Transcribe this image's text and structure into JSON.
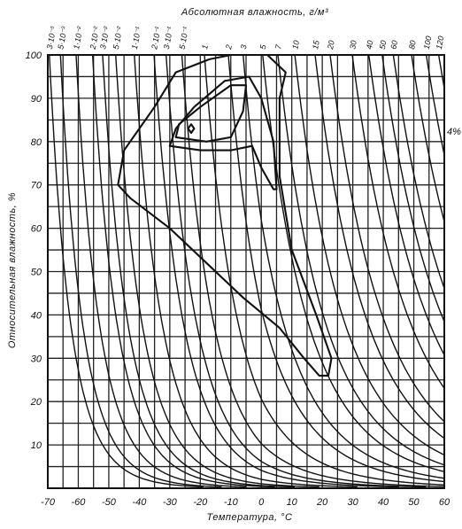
{
  "chart_data": {
    "type": "diagram",
    "xlabel": "Температура, °С",
    "ylabel": "Относительная влажность, %",
    "top_label": "Абсолютная влажность, г/м³",
    "xlim": [
      -70,
      60
    ],
    "ylim": [
      0,
      100
    ],
    "x_ticks": [
      "-70",
      "-60",
      "-50",
      "-40",
      "-30",
      "-20",
      "-10",
      "0",
      "10",
      "20",
      "30",
      "40",
      "50",
      "60"
    ],
    "y_ticks": [
      "10",
      "20",
      "30",
      "40",
      "50",
      "60",
      "70",
      "80",
      "90",
      "100"
    ],
    "absolute_humidity_labels": [
      "3·10⁻³",
      "5·10⁻³",
      "1·10⁻²",
      "2·10⁻²",
      "3·10⁻²",
      "5·10⁻²",
      "1·10⁻¹",
      "2·10⁻¹",
      "3·10⁻¹",
      "5·10⁻¹",
      "1",
      "2",
      "3",
      "5",
      "7",
      "10",
      "15",
      "20",
      "30",
      "40",
      "50",
      "60",
      "80",
      "100",
      "120"
    ],
    "side_note": "4%",
    "absolute_humidity_g_m3": [
      0.003,
      0.005,
      0.01,
      0.02,
      0.03,
      0.05,
      0.1,
      0.2,
      0.3,
      0.5,
      1,
      2,
      3,
      5,
      7,
      10,
      15,
      20,
      30,
      40,
      50,
      60,
      80,
      100,
      120
    ],
    "contours": [
      {
        "points": [
          [
            -17,
            99
          ],
          [
            -28,
            96
          ],
          [
            -35,
            88
          ],
          [
            -45,
            78
          ],
          [
            -47,
            70
          ],
          [
            -43,
            67
          ],
          [
            -30,
            60
          ],
          [
            -18,
            52
          ],
          [
            -6,
            44
          ],
          [
            6,
            37
          ],
          [
            14,
            30
          ],
          [
            19,
            26
          ],
          [
            22,
            26
          ],
          [
            23,
            30
          ],
          [
            18,
            40
          ],
          [
            10,
            55
          ],
          [
            6,
            72
          ],
          [
            6,
            90
          ],
          [
            8,
            96
          ],
          [
            2,
            100
          ],
          [
            -10,
            100
          ],
          [
            -17,
            99
          ]
        ]
      },
      {
        "points": [
          [
            -30,
            79
          ],
          [
            -20,
            78
          ],
          [
            -10,
            78
          ],
          [
            -3,
            79
          ],
          [
            0,
            74
          ],
          [
            4,
            69
          ],
          [
            5,
            69
          ],
          [
            4,
            80
          ],
          [
            0,
            90
          ],
          [
            -4,
            95
          ],
          [
            -12,
            94
          ],
          [
            -22,
            88
          ],
          [
            -28,
            83
          ],
          [
            -30,
            79
          ]
        ]
      },
      {
        "points": [
          [
            -28,
            81
          ],
          [
            -18,
            80
          ],
          [
            -10,
            81
          ],
          [
            -6,
            87
          ],
          [
            -5,
            93
          ],
          [
            -10,
            93
          ],
          [
            -20,
            88
          ],
          [
            -27,
            84
          ],
          [
            -28,
            81
          ]
        ]
      },
      {
        "points": [
          [
            -24,
            83
          ],
          [
            -23,
            82
          ],
          [
            -22,
            83
          ],
          [
            -23,
            84
          ],
          [
            -24,
            83
          ]
        ]
      }
    ]
  }
}
